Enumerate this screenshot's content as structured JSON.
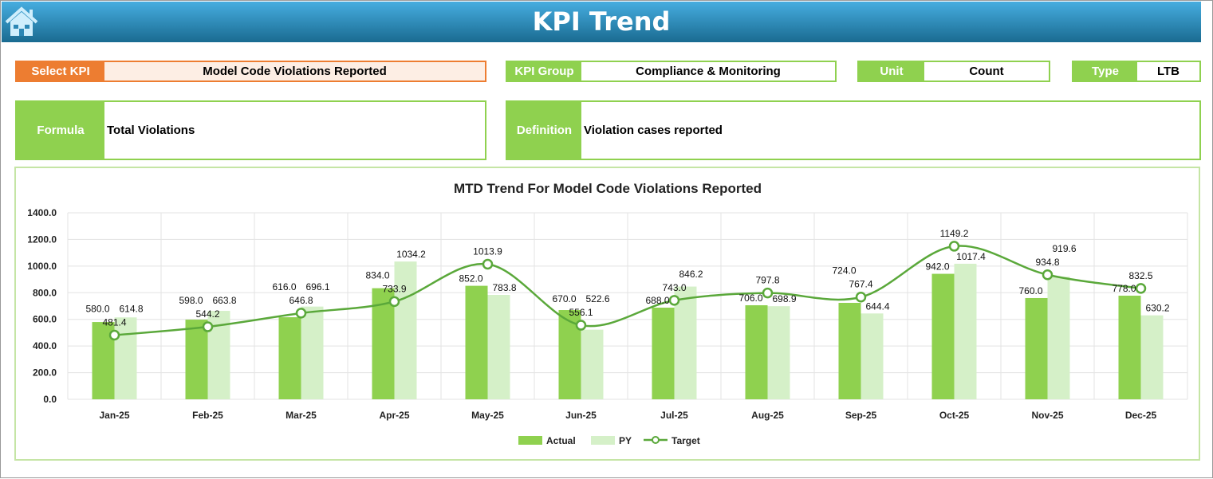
{
  "header": {
    "title": "KPI Trend",
    "home_icon": "home-icon"
  },
  "select_kpi": {
    "label": "Select KPI",
    "value": "Model Code Violations Reported"
  },
  "kpi_group": {
    "label": "KPI Group",
    "value": "Compliance & Monitoring"
  },
  "unit": {
    "label": "Unit",
    "value": "Count"
  },
  "type": {
    "label": "Type",
    "value": "LTB"
  },
  "formula": {
    "label": "Formula",
    "value": "Total Violations"
  },
  "definition": {
    "label": "Definition",
    "value": "Violation cases reported"
  },
  "colors": {
    "header": "#1f7aa5",
    "accent": "#8fd14f",
    "select": "#ed7d31",
    "actual": "#8fd14f",
    "py": "#d5f0c8",
    "target": "#5aa83a"
  },
  "chart_data": {
    "type": "bar",
    "title": "MTD Trend For Model Code Violations Reported",
    "categories": [
      "Jan-25",
      "Feb-25",
      "Mar-25",
      "Apr-25",
      "May-25",
      "Jun-25",
      "Jul-25",
      "Aug-25",
      "Sep-25",
      "Oct-25",
      "Nov-25",
      "Dec-25"
    ],
    "ylim": [
      0,
      1400
    ],
    "yticks": [
      "0.0",
      "200.0",
      "400.0",
      "600.0",
      "800.0",
      "1000.0",
      "1200.0",
      "1400.0"
    ],
    "grid": true,
    "legend": "bottom",
    "series": [
      {
        "name": "Actual",
        "type": "bar",
        "values": [
          580.0,
          598.0,
          616.0,
          834.0,
          852.0,
          670.0,
          688.0,
          706.0,
          724.0,
          942.0,
          760.0,
          778.0
        ]
      },
      {
        "name": "PY",
        "type": "bar",
        "values": [
          614.8,
          663.8,
          696.1,
          1034.2,
          783.8,
          522.6,
          846.2,
          698.9,
          644.4,
          1017.4,
          919.6,
          630.2
        ]
      },
      {
        "name": "Target",
        "type": "line",
        "values": [
          481.4,
          544.2,
          646.8,
          733.9,
          1013.9,
          556.1,
          743.0,
          797.8,
          767.4,
          1149.2,
          934.8,
          832.5
        ]
      }
    ]
  }
}
